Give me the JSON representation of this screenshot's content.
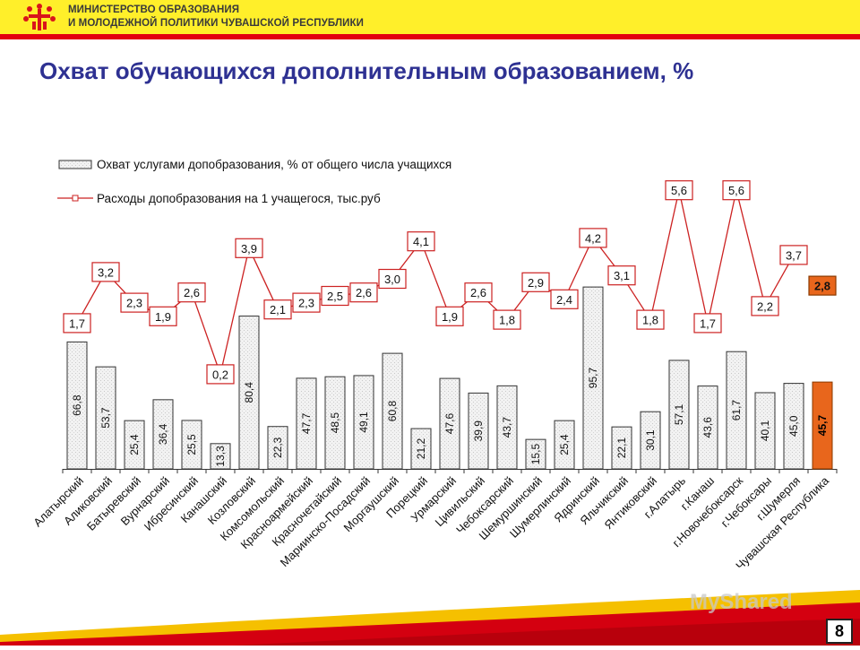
{
  "header": {
    "ministry_line1": "МИНИСТЕРСТВО ОБРАЗОВАНИЯ",
    "ministry_line2": "И МОЛОДЕЖНОЙ ПОЛИТИКИ ЧУВАШСКОЙ РЕСПУБЛИКИ"
  },
  "page": {
    "title": "Охват обучающихся дополнительным образованием, %",
    "number": "8"
  },
  "watermark": "MyShared",
  "colors": {
    "topbar": "#ffef2a",
    "red": "#e3000f",
    "title": "#2e3192",
    "line": "#cc2222",
    "highlight": "#e8661c"
  },
  "chart_data": {
    "type": "bar+line",
    "legend": [
      {
        "name": "Охват услугами допобразования, % от общего числа учащихся",
        "kind": "bar"
      },
      {
        "name": "Расходы допобразования на 1 учащегося, тыс.руб",
        "kind": "line"
      }
    ],
    "categories": [
      "Алатырский",
      "Аликовский",
      "Батыревский",
      "Вурнарский",
      "Ибресинский",
      "Канашский",
      "Козловский",
      "Комсомольский",
      "Красноармейский",
      "Красночетайский",
      "Мариинско-Посадский",
      "Моргаушский",
      "Порецкий",
      "Урмарский",
      "Цивильский",
      "Чебоксарский",
      "Шемуршинский",
      "Шумерлинский",
      "Ядринский",
      "Яльчикский",
      "Янтиковский",
      "г.Алатырь",
      "г.Канаш",
      "г.Новочебоксарск",
      "г.Чебоксары",
      "г.Шумерля",
      "Чувашская Республика"
    ],
    "bars": [
      "66,8",
      "53,7",
      "25,4",
      "36,4",
      "25,5",
      "13,3",
      "80,4",
      "22,3",
      "47,7",
      "48,5",
      "49,1",
      "60,8",
      "21,2",
      "47,6",
      "39,9",
      "43,7",
      "15,5",
      "25,4",
      "95,7",
      "22,1",
      "30,1",
      "57,1",
      "43,6",
      "61,7",
      "40,1",
      "45,0",
      "45,7"
    ],
    "bar_values": [
      66.8,
      53.7,
      25.4,
      36.4,
      25.5,
      13.3,
      80.4,
      22.3,
      47.7,
      48.5,
      49.1,
      60.8,
      21.2,
      47.6,
      39.9,
      43.7,
      15.5,
      25.4,
      95.7,
      22.1,
      30.1,
      57.1,
      43.6,
      61.7,
      40.1,
      45.0,
      45.7
    ],
    "line": [
      "1,7",
      "3,2",
      "2,3",
      "1,9",
      "2,6",
      "0,2",
      "3,9",
      "2,1",
      "2,3",
      "2,5",
      "2,6",
      "3,0",
      "4,1",
      "1,9",
      "2,6",
      "1,8",
      "2,9",
      "2,4",
      "4,2",
      "3,1",
      "1,8",
      "5,6",
      "1,7",
      "5,6",
      "2,2",
      "3,7",
      "2,8"
    ],
    "line_values": [
      1.7,
      3.2,
      2.3,
      1.9,
      2.6,
      0.2,
      3.9,
      2.1,
      2.3,
      2.5,
      2.6,
      3.0,
      4.1,
      1.9,
      2.6,
      1.8,
      2.9,
      2.4,
      4.2,
      3.1,
      1.8,
      5.6,
      1.7,
      5.6,
      2.2,
      3.7,
      2.8
    ],
    "highlight_index": 26
  }
}
